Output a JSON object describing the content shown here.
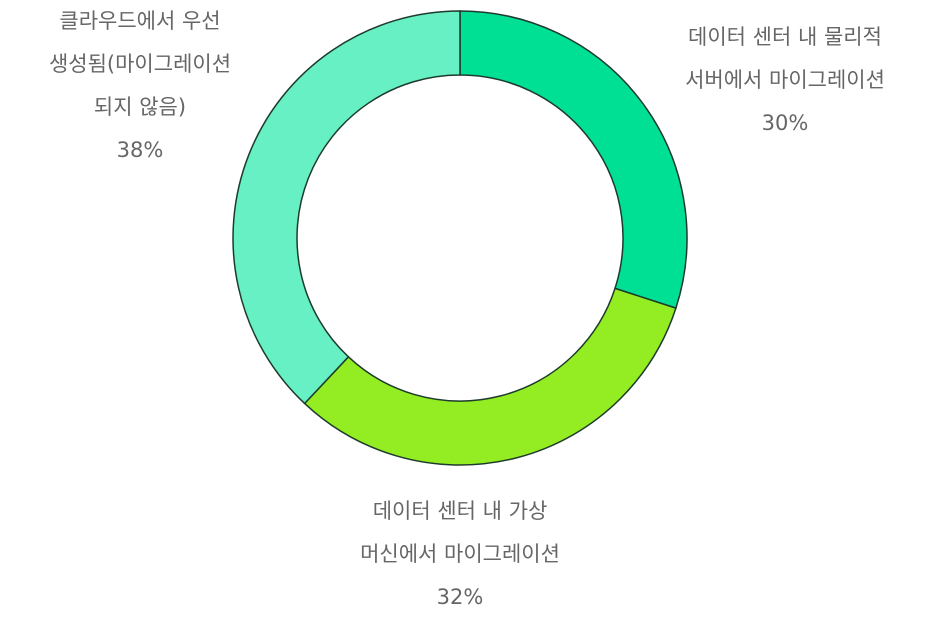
{
  "chart_data": {
    "type": "donut",
    "categories": [
      "데이터 센터 내 물리적\n서버에서 마이그레이션",
      "데이터 센터 내 가상\n머신에서 마이그레이션",
      "클라우드에서 우선\n생성됨(마이그레이션\n되지 않음)"
    ],
    "values": [
      30,
      32,
      38
    ],
    "value_labels": [
      "30%",
      "32%",
      "38%"
    ],
    "colors": [
      "#00e095",
      "#93ed22",
      "#66f0c3"
    ]
  }
}
